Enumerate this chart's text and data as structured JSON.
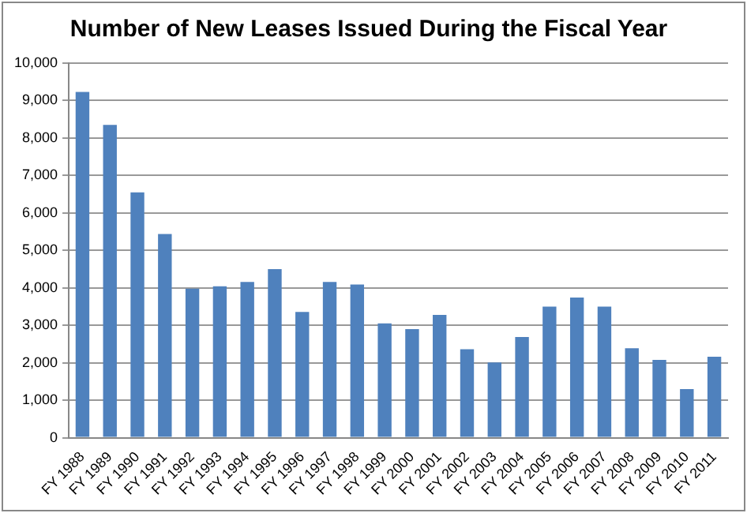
{
  "chart_data": {
    "type": "bar",
    "title": "Number of New Leases Issued During the Fiscal Year",
    "categories": [
      "FY 1988",
      "FY 1989",
      "FY 1990",
      "FY 1991",
      "FY 1992",
      "FY 1993",
      "FY 1994",
      "FY 1995",
      "FY 1996",
      "FY 1997",
      "FY 1998",
      "FY 1999",
      "FY 2000",
      "FY 2001",
      "FY 2002",
      "FY 2003",
      "FY 2004",
      "FY 2005",
      "FY 2006",
      "FY 2007",
      "FY 2008",
      "FY 2009",
      "FY 2010",
      "FY 2011"
    ],
    "values": [
      9230,
      8350,
      6550,
      5440,
      3980,
      4040,
      4160,
      4500,
      3360,
      4160,
      4090,
      3050,
      2900,
      3280,
      2360,
      2010,
      2690,
      3500,
      3740,
      3500,
      2390,
      2080,
      1300,
      2160
    ],
    "color": "#4f81bd",
    "ylim": [
      0,
      10000
    ],
    "yticks": [
      0,
      {
        "value": 1000,
        "label": "1,000"
      },
      {
        "value": 2000,
        "label": "2,000"
      },
      {
        "value": 3000,
        "label": "3,000"
      },
      {
        "value": 4000,
        "label": "4,000"
      },
      {
        "value": 5000,
        "label": "5,000"
      },
      {
        "value": 6000,
        "label": "6,000"
      },
      {
        "value": 7000,
        "label": "7,000"
      },
      {
        "value": 8000,
        "label": "8,000"
      },
      {
        "value": 9000,
        "label": "9,000"
      },
      {
        "value": 10000,
        "label": "10,000"
      }
    ],
    "grid": "y",
    "legend": false
  }
}
